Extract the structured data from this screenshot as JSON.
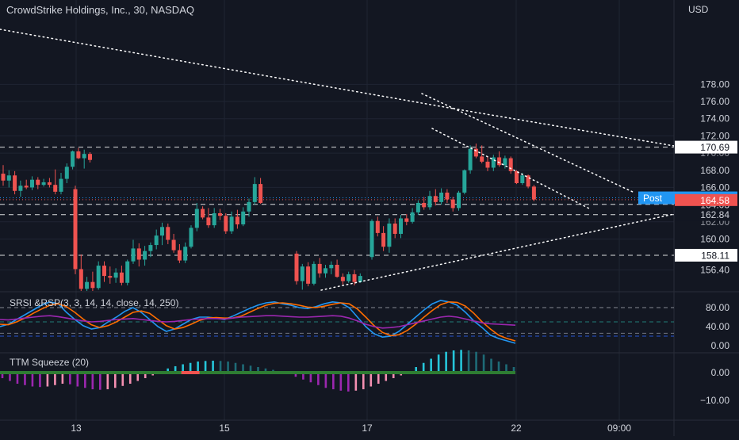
{
  "header": {
    "symbol_title": "CrowdStrike Holdings, Inc., 30, NASDAQ",
    "currency": "USD"
  },
  "colors": {
    "background": "#131722",
    "up": "#26a69a",
    "down": "#ef5350",
    "text": "#d1d4dc",
    "grid": "#1f2433",
    "annotation": "#ffffff",
    "srsi_k": "#2196f3",
    "srsi_d": "#ff6d00",
    "rsi": "#9c27b0",
    "ttm_pos_strong": "#26c6da",
    "ttm_pos_weak": "#1e6b77",
    "ttm_neg_strong": "#9c27b0",
    "ttm_neg_weak": "#f48fb1",
    "squeeze_on": "#ef5350",
    "squeeze_off": "#2e7d32",
    "post_badge": "#2196f3",
    "last_price_badge": "#ef5350"
  },
  "chart_data": [
    {
      "type": "candlestick",
      "title": "CrowdStrike Holdings, Inc., 30, NASDAQ",
      "ylabel": "USD",
      "ylim": [
        154.2,
        180.2
      ],
      "y_ticks": [
        156.4,
        160.0,
        162.0,
        164.0,
        166.0,
        168.0,
        170.0,
        172.0,
        174.0,
        176.0,
        178.0
      ],
      "x_tick_labels": [
        "13",
        "15",
        "17",
        "22",
        "09:00"
      ],
      "horizontal_levels": [
        170.69,
        164.03,
        162.84,
        158.11
      ],
      "price_labels": {
        "post_label": "Post",
        "post": "164.79",
        "last": "164.58",
        "levels": [
          "170.69",
          "164.03",
          "162.84",
          "158.11"
        ]
      },
      "candles": [
        [
          167.6,
          168.6,
          166.2,
          166.8
        ],
        [
          166.8,
          168.0,
          166.0,
          167.4
        ],
        [
          167.4,
          167.9,
          165.2,
          165.6
        ],
        [
          165.6,
          166.8,
          164.9,
          166.2
        ],
        [
          166.2,
          166.9,
          165.8,
          166.0
        ],
        [
          166.0,
          167.3,
          165.7,
          166.9
        ],
        [
          166.9,
          167.2,
          165.8,
          166.3
        ],
        [
          166.3,
          167.0,
          166.1,
          166.6
        ],
        [
          166.6,
          167.1,
          166.0,
          166.3
        ],
        [
          166.3,
          168.1,
          165.2,
          165.5
        ],
        [
          165.5,
          167.7,
          165.2,
          167.0
        ],
        [
          167.0,
          168.8,
          166.5,
          168.4
        ],
        [
          168.4,
          170.3,
          168.1,
          170.2
        ],
        [
          170.2,
          170.6,
          169.3,
          169.4
        ],
        [
          169.4,
          170.4,
          168.2,
          169.9
        ],
        [
          169.9,
          170.1,
          168.9,
          169.2
        ],
        [
          165.8,
          166.2,
          155.9,
          156.5
        ],
        [
          156.5,
          158.2,
          153.8,
          154.2
        ],
        [
          154.2,
          155.6,
          153.5,
          155.0
        ],
        [
          155.0,
          156.2,
          153.9,
          154.3
        ],
        [
          154.3,
          157.4,
          154.1,
          156.9
        ],
        [
          156.9,
          157.4,
          155.0,
          155.7
        ],
        [
          155.7,
          156.8,
          154.8,
          155.5
        ],
        [
          155.5,
          156.6,
          154.9,
          156.1
        ],
        [
          156.1,
          156.9,
          154.6,
          154.9
        ],
        [
          154.9,
          157.6,
          154.6,
          157.4
        ],
        [
          157.4,
          159.9,
          157.1,
          158.9
        ],
        [
          158.9,
          159.5,
          156.8,
          157.6
        ],
        [
          157.6,
          159.2,
          156.9,
          158.6
        ],
        [
          158.6,
          159.6,
          157.9,
          159.3
        ],
        [
          159.3,
          161.1,
          158.8,
          160.4
        ],
        [
          160.4,
          161.9,
          159.3,
          161.4
        ],
        [
          161.4,
          161.8,
          159.4,
          159.9
        ],
        [
          159.9,
          160.6,
          158.4,
          158.7
        ],
        [
          158.7,
          159.4,
          157.2,
          157.5
        ],
        [
          157.5,
          159.6,
          157.2,
          159.1
        ],
        [
          159.1,
          161.6,
          158.9,
          161.3
        ],
        [
          161.3,
          164.2,
          160.9,
          163.5
        ],
        [
          163.5,
          163.8,
          162.3,
          162.5
        ],
        [
          162.5,
          163.6,
          161.3,
          161.6
        ],
        [
          161.6,
          163.6,
          161.3,
          163.0
        ],
        [
          163.0,
          163.5,
          162.2,
          162.7
        ],
        [
          162.7,
          163.0,
          160.6,
          160.9
        ],
        [
          160.9,
          163.2,
          160.6,
          162.6
        ],
        [
          162.6,
          163.4,
          161.2,
          161.7
        ],
        [
          161.7,
          163.7,
          161.5,
          163.2
        ],
        [
          163.2,
          164.7,
          162.6,
          164.3
        ],
        [
          164.3,
          167.2,
          164.0,
          166.4
        ],
        [
          166.4,
          167.1,
          164.1,
          164.2
        ],
        [
          158.3,
          158.6,
          154.7,
          155.1
        ],
        [
          155.1,
          157.1,
          154.1,
          156.8
        ],
        [
          156.8,
          157.3,
          154.5,
          154.8
        ],
        [
          154.8,
          157.4,
          154.6,
          157.1
        ],
        [
          157.1,
          157.8,
          155.5,
          156.0
        ],
        [
          156.0,
          157.0,
          155.5,
          156.6
        ],
        [
          156.6,
          157.4,
          155.9,
          157.0
        ],
        [
          157.0,
          157.6,
          155.5,
          155.6
        ],
        [
          155.6,
          156.0,
          154.7,
          155.1
        ],
        [
          155.1,
          156.2,
          154.9,
          155.9
        ],
        [
          155.9,
          156.4,
          154.6,
          155.0
        ],
        [
          155.0,
          156.0,
          154.9,
          155.7
        ],
        [
          157.9,
          162.3,
          157.6,
          162.1
        ],
        [
          162.1,
          162.6,
          160.3,
          160.7
        ],
        [
          160.7,
          161.5,
          158.6,
          159.1
        ],
        [
          159.1,
          162.4,
          158.4,
          161.8
        ],
        [
          161.8,
          162.4,
          160.1,
          160.6
        ],
        [
          160.6,
          162.8,
          160.1,
          162.4
        ],
        [
          162.4,
          162.9,
          161.6,
          162.0
        ],
        [
          162.0,
          163.6,
          161.8,
          163.1
        ],
        [
          163.1,
          164.5,
          162.8,
          164.2
        ],
        [
          164.2,
          164.9,
          163.4,
          163.7
        ],
        [
          163.7,
          165.6,
          163.4,
          165.0
        ],
        [
          165.0,
          165.8,
          163.9,
          164.3
        ],
        [
          164.3,
          165.9,
          164.0,
          165.4
        ],
        [
          165.4,
          165.8,
          164.2,
          164.6
        ],
        [
          164.6,
          164.9,
          163.2,
          163.6
        ],
        [
          163.6,
          165.6,
          163.3,
          165.4
        ],
        [
          165.4,
          168.1,
          165.2,
          168.0
        ],
        [
          168.0,
          170.9,
          167.6,
          170.5
        ],
        [
          170.5,
          171.1,
          169.4,
          169.6
        ],
        [
          169.6,
          170.9,
          168.8,
          169.0
        ],
        [
          169.0,
          169.6,
          167.9,
          168.3
        ],
        [
          168.3,
          169.8,
          167.9,
          169.5
        ],
        [
          169.5,
          170.2,
          168.4,
          168.6
        ],
        [
          168.6,
          169.7,
          168.2,
          169.4
        ],
        [
          169.4,
          169.6,
          167.6,
          167.9
        ],
        [
          167.9,
          168.0,
          166.4,
          166.5
        ],
        [
          166.5,
          167.7,
          166.3,
          167.4
        ],
        [
          167.4,
          167.5,
          165.9,
          166.1
        ],
        [
          166.1,
          166.3,
          164.4,
          164.6
        ]
      ],
      "trendlines": [
        {
          "from": [
            "0",
            178.6
          ],
          "to": [
            "22",
            170.7
          ]
        },
        {
          "from": [
            "22",
            170.7
          ],
          "to": [
            "09:00",
            167.7
          ]
        },
        {
          "from": [
            "17",
            173.0
          ],
          "to": [
            "22",
            163.1
          ]
        },
        {
          "from": [
            "17",
            168.4
          ],
          "to": [
            "22",
            161.4
          ]
        },
        {
          "from": [
            "17",
            154.3
          ],
          "to": [
            "09:00",
            161.2
          ]
        }
      ]
    },
    {
      "type": "line",
      "title": "SRSI &RSP(3, 3, 14, 14, close, 14, 250)",
      "ylim": [
        -2,
        98
      ],
      "y_ticks": [
        "0.00",
        "40.00",
        "80.00"
      ],
      "levels": [
        80,
        50,
        20
      ],
      "series": [
        {
          "name": "K",
          "values": [
            40,
            45,
            55,
            65,
            75,
            85,
            92,
            88,
            70,
            55,
            42,
            35,
            38,
            50,
            60,
            72,
            80,
            70,
            55,
            40,
            30,
            35,
            45,
            55,
            60,
            60,
            58,
            55,
            62,
            70,
            78,
            85,
            90,
            92,
            88,
            85,
            80,
            78,
            82,
            88,
            92,
            90,
            80,
            60,
            40,
            25,
            18,
            20,
            30,
            45,
            60,
            75,
            88,
            95,
            92,
            85,
            70,
            52,
            38,
            22,
            15,
            10,
            5
          ]
        },
        {
          "name": "D",
          "values": [
            45,
            44,
            50,
            58,
            68,
            77,
            85,
            88,
            82,
            70,
            56,
            44,
            38,
            42,
            50,
            60,
            70,
            73,
            68,
            55,
            42,
            35,
            38,
            45,
            53,
            58,
            59,
            58,
            58,
            62,
            70,
            78,
            85,
            89,
            90,
            88,
            85,
            81,
            80,
            83,
            87,
            90,
            88,
            77,
            60,
            42,
            28,
            21,
            23,
            32,
            45,
            60,
            74,
            86,
            92,
            91,
            83,
            68,
            50,
            35,
            22,
            15,
            10
          ]
        },
        {
          "name": "RSI",
          "values": [
            55,
            54,
            56,
            58,
            60,
            62,
            63,
            61,
            58,
            55,
            52,
            50,
            51,
            53,
            55,
            56,
            57,
            55,
            53,
            51,
            50,
            51,
            53,
            55,
            56,
            57,
            57,
            56,
            58,
            60,
            61,
            62,
            63,
            63,
            62,
            61,
            60,
            60,
            61,
            62,
            63,
            62,
            58,
            52,
            45,
            40,
            37,
            38,
            40,
            44,
            48,
            52,
            56,
            60,
            62,
            60,
            56,
            52,
            48,
            46,
            45,
            44,
            43
          ]
        }
      ]
    },
    {
      "type": "bar",
      "title": "TTM Squeeze (20)",
      "ylim": [
        -12,
        12
      ],
      "y_ticks": [
        "0.00",
        "−10.00"
      ],
      "values": [
        -2,
        -3,
        -4,
        -4.5,
        -5,
        -5.2,
        -5,
        -4.5,
        -4,
        -4.2,
        -5,
        -5.5,
        -6,
        -6.2,
        -6,
        -5.5,
        -4.8,
        -4,
        -3,
        -2,
        -1,
        0.5,
        1.5,
        2.3,
        3,
        3.5,
        4,
        4.2,
        4.3,
        4.2,
        4,
        3.5,
        3,
        2.5,
        2,
        1.5,
        1,
        0.5,
        -0.5,
        -1.5,
        -2.5,
        -3.5,
        -4.5,
        -5.5,
        -6,
        -6.5,
        -6.8,
        -6.5,
        -6,
        -5,
        -4,
        -3,
        -2,
        -1,
        0.5,
        2,
        3.5,
        5,
        6.5,
        7.5,
        8,
        8.2,
        8,
        7.5,
        6.5,
        5,
        4,
        3,
        2
      ],
      "squeeze_on_range": [
        24,
        26
      ]
    }
  ]
}
